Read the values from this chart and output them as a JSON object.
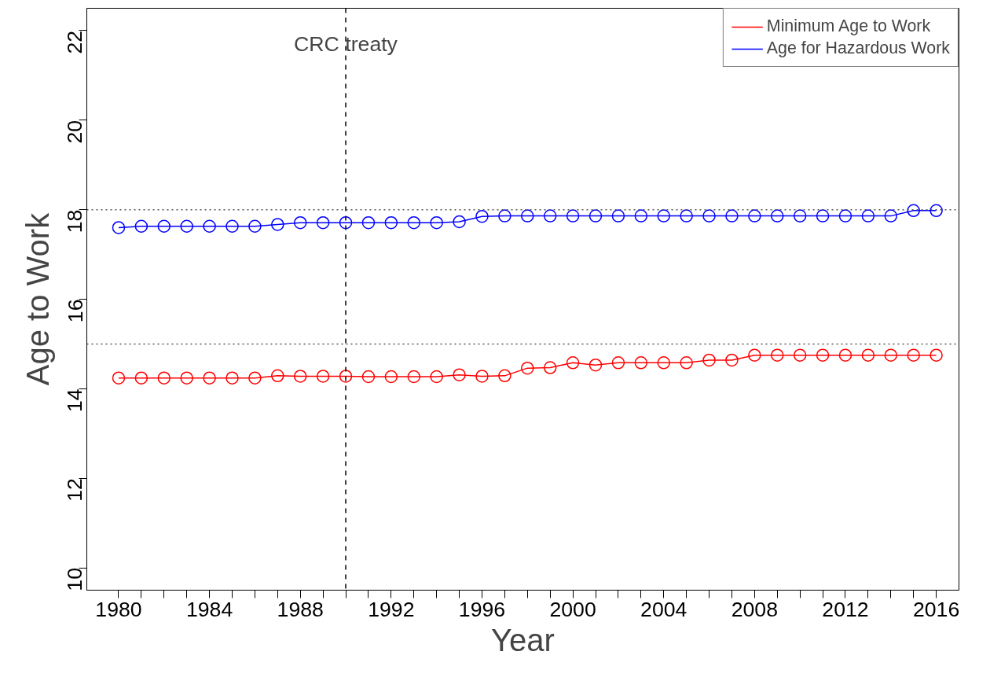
{
  "chart_data": {
    "type": "line",
    "xlabel": "Year",
    "ylabel": "Age to Work",
    "x": [
      1980,
      1981,
      1982,
      1983,
      1984,
      1985,
      1986,
      1987,
      1988,
      1989,
      1990,
      1991,
      1992,
      1993,
      1994,
      1995,
      1996,
      1997,
      1998,
      1999,
      2000,
      2001,
      2002,
      2003,
      2004,
      2005,
      2006,
      2007,
      2008,
      2009,
      2010,
      2011,
      2012,
      2013,
      2014,
      2015,
      2016
    ],
    "series": [
      {
        "name": "Minimum Age to Work",
        "color": "#ff0000",
        "values": [
          14.24,
          14.24,
          14.24,
          14.24,
          14.24,
          14.24,
          14.24,
          14.29,
          14.28,
          14.28,
          14.28,
          14.27,
          14.27,
          14.27,
          14.27,
          14.31,
          14.28,
          14.29,
          14.46,
          14.47,
          14.58,
          14.53,
          14.58,
          14.58,
          14.58,
          14.58,
          14.64,
          14.64,
          14.75,
          14.75,
          14.75,
          14.75,
          14.75,
          14.75,
          14.75,
          14.75,
          14.75
        ]
      },
      {
        "name": "Age for Hazardous Work",
        "color": "#0000ff",
        "values": [
          17.6,
          17.63,
          17.63,
          17.63,
          17.63,
          17.63,
          17.63,
          17.67,
          17.71,
          17.71,
          17.71,
          17.71,
          17.71,
          17.71,
          17.71,
          17.73,
          17.85,
          17.86,
          17.86,
          17.86,
          17.86,
          17.86,
          17.86,
          17.86,
          17.86,
          17.86,
          17.86,
          17.86,
          17.86,
          17.86,
          17.86,
          17.86,
          17.86,
          17.86,
          17.86,
          17.98,
          17.98
        ]
      }
    ],
    "xlim": [
      1978.6,
      2017
    ],
    "ylim": [
      9.5,
      22.5
    ],
    "xticks": [
      1980,
      {
        "value": 1981,
        "label": null
      },
      {
        "value": 1982,
        "label": null
      },
      {
        "value": 1983,
        "label": null
      },
      1984,
      {
        "value": 1985,
        "label": null
      },
      {
        "value": 1986,
        "label": null
      },
      {
        "value": 1987,
        "label": null
      },
      1988,
      {
        "value": 1989,
        "label": null
      },
      {
        "value": 1990,
        "label": null
      },
      {
        "value": 1991,
        "label": null
      },
      1992,
      {
        "value": 1993,
        "label": null
      },
      {
        "value": 1994,
        "label": null
      },
      {
        "value": 1995,
        "label": null
      },
      1996,
      {
        "value": 1997,
        "label": null
      },
      {
        "value": 1998,
        "label": null
      },
      {
        "value": 1999,
        "label": null
      },
      2000,
      {
        "value": 2001,
        "label": null
      },
      {
        "value": 2002,
        "label": null
      },
      {
        "value": 2003,
        "label": null
      },
      2004,
      {
        "value": 2005,
        "label": null
      },
      {
        "value": 2006,
        "label": null
      },
      {
        "value": 2007,
        "label": null
      },
      2008,
      {
        "value": 2009,
        "label": null
      },
      {
        "value": 2010,
        "label": null
      },
      {
        "value": 2011,
        "label": null
      },
      2012,
      {
        "value": 2013,
        "label": null
      },
      {
        "value": 2014,
        "label": null
      },
      {
        "value": 2015,
        "label": null
      },
      2016
    ],
    "yticks": [
      10,
      12,
      14,
      16,
      18,
      20,
      22
    ],
    "ref_lines": [
      {
        "axis": "x",
        "value": 1990,
        "label": "CRC treaty",
        "line_style": "dashed",
        "color": "#000000"
      },
      {
        "axis": "y",
        "value": 18,
        "label": null,
        "line_style": "dotted",
        "color": "#555555"
      },
      {
        "axis": "y",
        "value": 15,
        "label": null,
        "line_style": "dotted",
        "color": "#555555"
      }
    ],
    "legend": "top right",
    "marker": "circle",
    "line_style": "solid",
    "grid": false
  }
}
